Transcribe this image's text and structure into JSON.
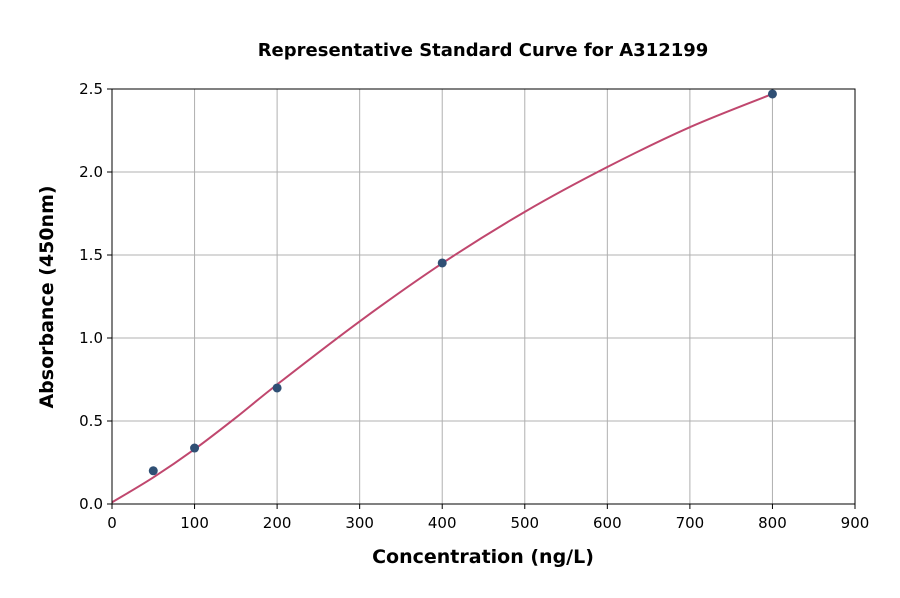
{
  "chart_data": {
    "type": "scatter",
    "title": "Representative Standard Curve for A312199",
    "xlabel": "Concentration (ng/L)",
    "ylabel": "Absorbance (450nm)",
    "xlim": [
      0,
      900
    ],
    "ylim": [
      0,
      2.5
    ],
    "xticks": [
      0,
      100,
      200,
      300,
      400,
      500,
      600,
      700,
      800,
      900
    ],
    "yticks": [
      "0.0",
      "0.5",
      "1.0",
      "1.5",
      "2.0",
      "2.5"
    ],
    "grid": true,
    "points": {
      "x": [
        50,
        100,
        200,
        400,
        800
      ],
      "y": [
        0.2,
        0.337,
        0.699,
        1.452,
        2.47
      ]
    },
    "fit_curve": {
      "x": [
        0,
        50,
        100,
        150,
        200,
        300,
        400,
        500,
        600,
        700,
        800
      ],
      "y": [
        0.01,
        0.16,
        0.33,
        0.52,
        0.72,
        1.1,
        1.45,
        1.76,
        2.03,
        2.27,
        2.47
      ]
    },
    "colors": {
      "points": "#2f4f74",
      "curve": "#c0476e",
      "grid": "#b0b0b0"
    }
  }
}
